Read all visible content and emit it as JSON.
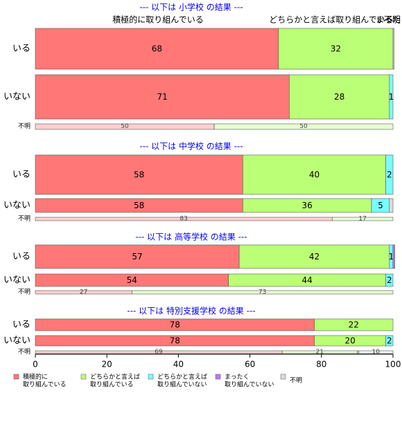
{
  "chart_data": {
    "type": "bar",
    "orientation": "horizontal",
    "stacked": true,
    "xlim": [
      0,
      100
    ],
    "x_ticks": [
      0,
      20,
      40,
      60,
      80,
      100
    ],
    "grid": false,
    "legend_position": "bottom",
    "top_labels": [
      "積極的に取り組んでいる",
      "どちらかと言えば取り組んでいる",
      "不明",
      "まったく"
    ],
    "legend": [
      {
        "line1": "積極的に",
        "line2": "取り組んでいる",
        "color": "#FF7777"
      },
      {
        "line1": "どちらかと言えば",
        "line2": "取り組んでいる",
        "color": "#BBFF77"
      },
      {
        "line1": "どちらかと言えば",
        "line2": "取り組んでいない",
        "color": "#77FFFF"
      },
      {
        "line1": "まったく",
        "line2": "取り組んでいない",
        "color": "#BB77FF"
      },
      {
        "line1": "不明",
        "line2": "",
        "color": "#DDDDDD"
      }
    ],
    "groups": [
      {
        "header": "--- 以下は 小学校 の結果 ---",
        "rows": [
          {
            "label": "いる",
            "values": [
              68,
              32,
              0,
              0,
              0.3
            ],
            "labels": [
              "68",
              "32",
              "",
              "",
              ""
            ]
          },
          {
            "label": "いない",
            "values": [
              71,
              28,
              1,
              0,
              0
            ],
            "labels": [
              "71",
              "28",
              "1",
              "",
              ""
            ]
          },
          {
            "label": "不明",
            "values": [
              50,
              50,
              0,
              0,
              0
            ],
            "labels": [
              "50",
              "50",
              "",
              "",
              ""
            ]
          }
        ]
      },
      {
        "header": "--- 以下は 中学校 の結果 ---",
        "rows": [
          {
            "label": "いる",
            "values": [
              58,
              40,
              2,
              0,
              0
            ],
            "labels": [
              "58",
              "40",
              "2",
              "",
              ""
            ]
          },
          {
            "label": "いない",
            "values": [
              58,
              36,
              5,
              0,
              1
            ],
            "labels": [
              "58",
              "36",
              "5",
              "",
              ""
            ]
          },
          {
            "label": "不明",
            "values": [
              83,
              17,
              0,
              0,
              0
            ],
            "labels": [
              "83",
              "17",
              "",
              "",
              ""
            ]
          }
        ]
      },
      {
        "header": "--- 以下は 高等学校 の結果 ---",
        "rows": [
          {
            "label": "いる",
            "values": [
              57,
              42,
              1,
              0.5,
              0
            ],
            "labels": [
              "57",
              "42",
              "1",
              "",
              ""
            ]
          },
          {
            "label": "いない",
            "values": [
              54,
              44,
              2,
              0,
              0
            ],
            "labels": [
              "54",
              "44",
              "2",
              "",
              ""
            ]
          },
          {
            "label": "不明",
            "values": [
              27,
              73,
              0,
              0,
              0
            ],
            "labels": [
              "27",
              "73",
              "",
              "",
              ""
            ]
          }
        ]
      },
      {
        "header": "--- 以下は 特別支援学校 の結果 ---",
        "rows": [
          {
            "label": "いる",
            "values": [
              78,
              22,
              0,
              0,
              0
            ],
            "labels": [
              "78",
              "22",
              "",
              "",
              ""
            ]
          },
          {
            "label": "いない",
            "values": [
              78,
              20,
              2,
              0,
              0
            ],
            "labels": [
              "78",
              "20",
              "2",
              "",
              ""
            ]
          },
          {
            "label": "不明",
            "values": [
              69,
              21,
              0.4,
              0,
              9.6
            ],
            "labels": [
              "69",
              "21",
              "",
              "",
              "10"
            ]
          }
        ]
      }
    ]
  }
}
